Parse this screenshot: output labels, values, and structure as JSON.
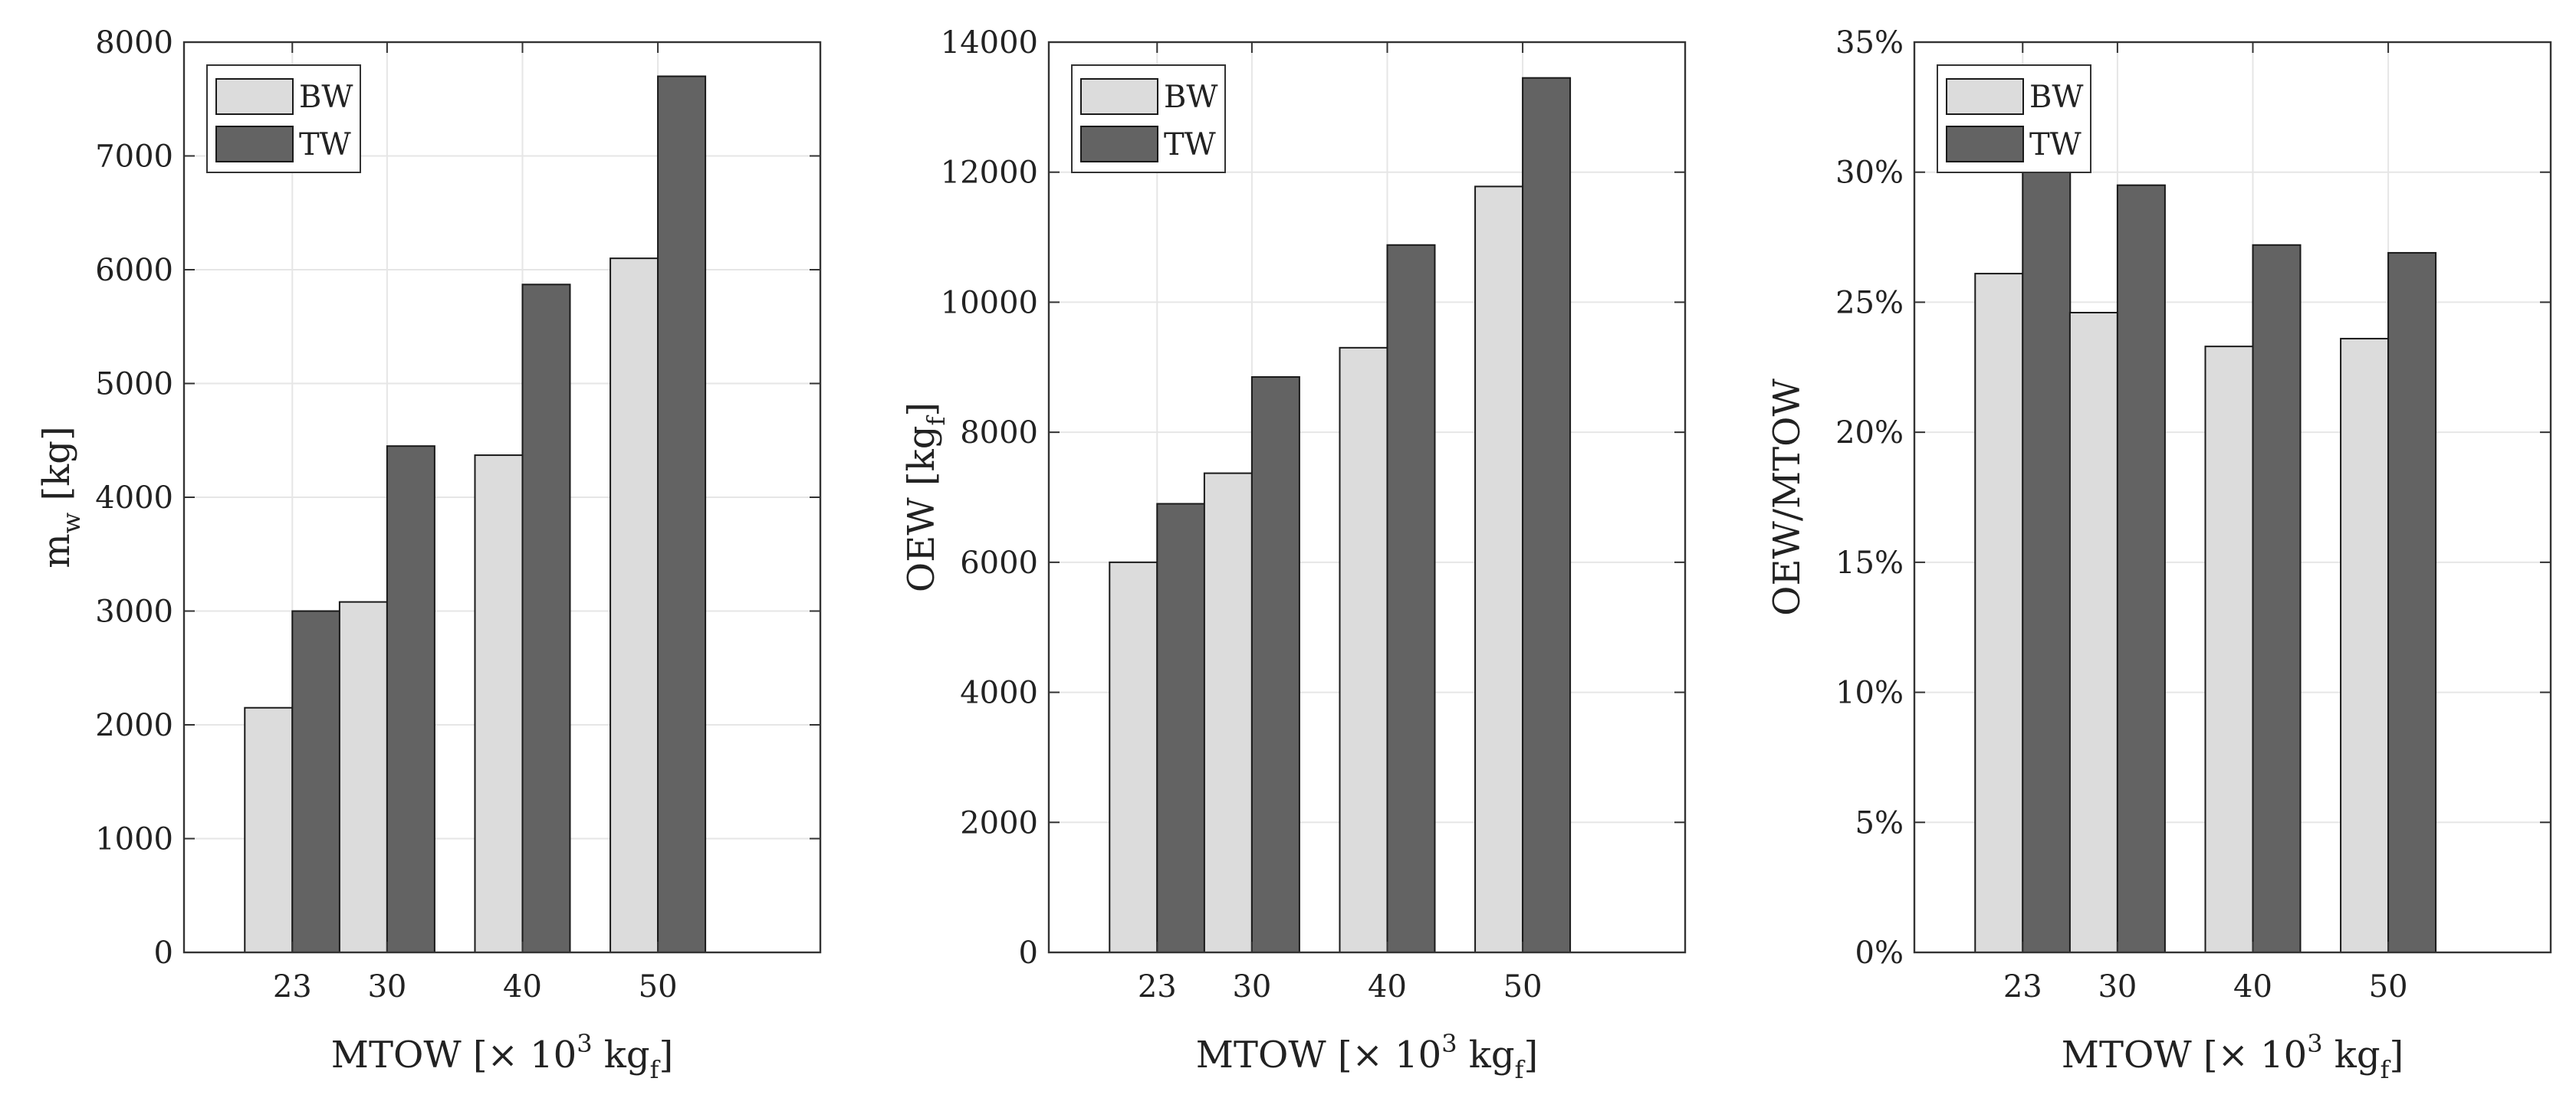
{
  "chart_data": [
    {
      "type": "bar",
      "categories": [
        "23",
        "30",
        "40",
        "50"
      ],
      "x_positions": [
        23,
        30,
        40,
        50
      ],
      "xlim": [
        15,
        62
      ],
      "series": [
        {
          "name": "BW",
          "values": [
            2150,
            3080,
            4370,
            6100
          ]
        },
        {
          "name": "TW",
          "values": [
            3000,
            4450,
            5870,
            7700
          ]
        }
      ],
      "ylim": [
        0,
        8000
      ],
      "yticks": [
        0,
        1000,
        2000,
        3000,
        4000,
        5000,
        6000,
        7000,
        8000
      ],
      "ytick_labels": [
        "0",
        "1000",
        "2000",
        "3000",
        "4000",
        "5000",
        "6000",
        "7000",
        "8000"
      ],
      "xlabel": {
        "main": "MTOW [× 10",
        "sup": "3",
        "mid": " kg",
        "sub": "f",
        "end": "]"
      },
      "ylabel": {
        "main": "m",
        "sub": "w",
        "end": " [kg]"
      },
      "legend": "top-left",
      "grid": true
    },
    {
      "type": "bar",
      "categories": [
        "23",
        "30",
        "40",
        "50"
      ],
      "x_positions": [
        23,
        30,
        40,
        50
      ],
      "xlim": [
        15,
        62
      ],
      "series": [
        {
          "name": "BW",
          "values": [
            6000,
            7370,
            9300,
            11780
          ]
        },
        {
          "name": "TW",
          "values": [
            6900,
            8850,
            10880,
            13450
          ]
        }
      ],
      "ylim": [
        0,
        14000
      ],
      "yticks": [
        0,
        2000,
        4000,
        6000,
        8000,
        10000,
        12000,
        14000
      ],
      "ytick_labels": [
        "0",
        "2000",
        "4000",
        "6000",
        "8000",
        "10000",
        "12000",
        "14000"
      ],
      "xlabel": {
        "main": "MTOW [× 10",
        "sup": "3",
        "mid": " kg",
        "sub": "f",
        "end": "]"
      },
      "ylabel": {
        "main": "OEW [kg",
        "sub": "f",
        "end": "]"
      },
      "legend": "top-left",
      "grid": true
    },
    {
      "type": "bar",
      "categories": [
        "23",
        "30",
        "40",
        "50"
      ],
      "x_positions": [
        23,
        30,
        40,
        50
      ],
      "xlim": [
        15,
        62
      ],
      "series": [
        {
          "name": "BW",
          "values": [
            26.1,
            24.6,
            23.3,
            23.6
          ]
        },
        {
          "name": "TW",
          "values": [
            30.0,
            29.5,
            27.2,
            26.9
          ]
        }
      ],
      "ylim": [
        0,
        35
      ],
      "yticks": [
        0,
        5,
        10,
        15,
        20,
        25,
        30,
        35
      ],
      "ytick_labels": [
        "0%",
        "5%",
        "10%",
        "15%",
        "20%",
        "25%",
        "30%",
        "35%"
      ],
      "xlabel": {
        "main": "MTOW [× 10",
        "sup": "3",
        "mid": " kg",
        "sub": "f",
        "end": "]"
      },
      "ylabel": {
        "main": "OEW/MTOW",
        "sub": "",
        "end": ""
      },
      "legend": "top-left",
      "grid": true
    }
  ],
  "colors": {
    "BW": "#dcdcdc",
    "TW": "#636363",
    "grid": "#e6e6e6",
    "axis": "#333333",
    "text": "#222222"
  }
}
